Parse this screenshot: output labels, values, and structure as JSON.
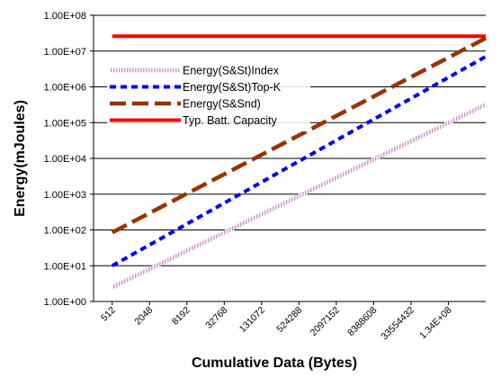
{
  "chart_data": {
    "type": "line",
    "title": "",
    "xlabel": "Cumulative Data (Bytes)",
    "ylabel": "Energy(mJoules)",
    "y_scale": "log",
    "ylim": [
      1,
      100000000
    ],
    "y_tick_labels": [
      "1.00E+00",
      "1.00E+01",
      "1.00E+02",
      "1.00E+03",
      "1.00E+04",
      "1.00E+05",
      "1.00E+06",
      "1.00E+07",
      "1.00E+08"
    ],
    "x_scale": "log",
    "x_range": [
      256,
      536870912
    ],
    "x_tick_values": [
      512,
      2048,
      8192,
      32768,
      131072,
      524288,
      2097152,
      8388608,
      33554432,
      134217728
    ],
    "x_tick_labels": [
      "512",
      "2048",
      "8192",
      "32768",
      "131072",
      "524288",
      "2097152",
      "8388608",
      "33554432",
      "1.34E+08"
    ],
    "grid": "horizontal",
    "legend_position": "upper-left inside plot",
    "series": [
      {
        "name": "Energy(S&St)Index",
        "color": "#cc99cc",
        "style": "hatched",
        "x": [
          512,
          536870912
        ],
        "y": [
          2.5,
          320000
        ]
      },
      {
        "name": "Energy(S&St)Top-K",
        "color": "#0000ff",
        "style": "dotted",
        "x": [
          512,
          536870912
        ],
        "y": [
          10,
          7000000
        ]
      },
      {
        "name": "Energy(S&Snd)",
        "color": "#993300",
        "style": "dashed",
        "x": [
          512,
          536870912
        ],
        "y": [
          85,
          23000000
        ]
      },
      {
        "name": "Typ. Batt. Capacity",
        "color": "#ff0000",
        "style": "solid",
        "x": [
          512,
          536870912
        ],
        "y": [
          26000000,
          26000000
        ]
      }
    ]
  }
}
